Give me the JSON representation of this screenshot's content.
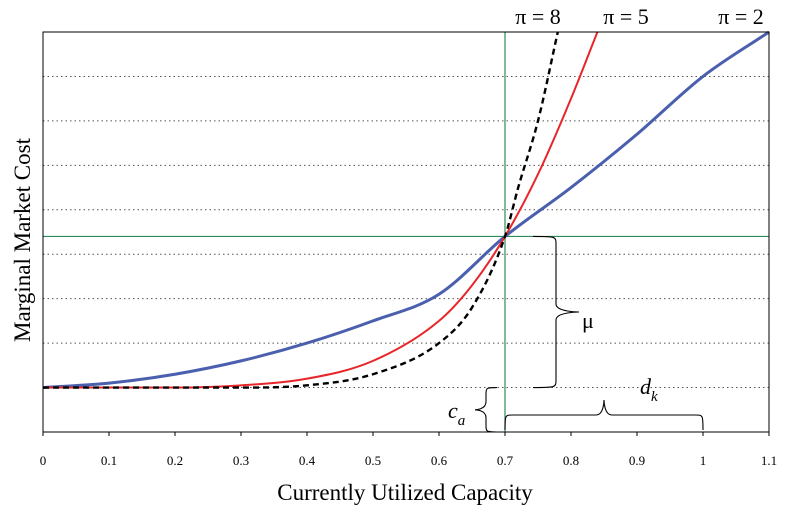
{
  "chart_data": {
    "type": "line",
    "title": "",
    "xlabel": "Currently Utilized Capacity",
    "ylabel": "Marginal Market Cost",
    "xlim": [
      0,
      1.1
    ],
    "ylim": [
      0,
      9
    ],
    "x_ticks": [
      "0",
      "0.1",
      "0.2",
      "0.3",
      "0.4",
      "0.5",
      "0.6",
      "0.7",
      "0.8",
      "0.9",
      "1",
      "1.1"
    ],
    "y_tick_labels": "none",
    "grid": "horizontal dotted",
    "base_level": 1,
    "series": [
      {
        "name": "π = 2",
        "color": "#4a5fad",
        "dash": "solid",
        "x": [
          0,
          0.1,
          0.2,
          0.3,
          0.4,
          0.5,
          0.6,
          0.7,
          0.8,
          0.9,
          1.0,
          1.1
        ],
        "y": [
          1.0,
          1.1,
          1.3,
          1.6,
          2.0,
          2.5,
          3.1,
          4.4,
          5.5,
          6.7,
          8.0,
          9.0
        ]
      },
      {
        "name": "π = 5",
        "color": "#e8262a",
        "dash": "solid",
        "x": [
          0,
          0.1,
          0.2,
          0.3,
          0.4,
          0.5,
          0.6,
          0.65,
          0.7,
          0.75,
          0.8,
          0.84
        ],
        "y": [
          1.0,
          1.0,
          1.0,
          1.05,
          1.2,
          1.6,
          2.5,
          3.3,
          4.4,
          5.8,
          7.5,
          9.0
        ]
      },
      {
        "name": "π = 8",
        "color": "#000000",
        "dash": "dashed",
        "x": [
          0,
          0.1,
          0.2,
          0.3,
          0.4,
          0.5,
          0.6,
          0.65,
          0.7,
          0.72,
          0.75,
          0.78
        ],
        "y": [
          1.0,
          1.0,
          1.0,
          1.0,
          1.05,
          1.3,
          2.0,
          2.8,
          4.4,
          5.5,
          7.0,
          9.0
        ]
      }
    ],
    "reference_lines": {
      "vertical_x": 0.7,
      "horizontal_y": 4.4,
      "color": "#2e8b57"
    },
    "annotations": {
      "mu": "μ",
      "ca_main": "c",
      "ca_sub": "a",
      "dk_main": "d",
      "dk_sub": "k"
    }
  }
}
